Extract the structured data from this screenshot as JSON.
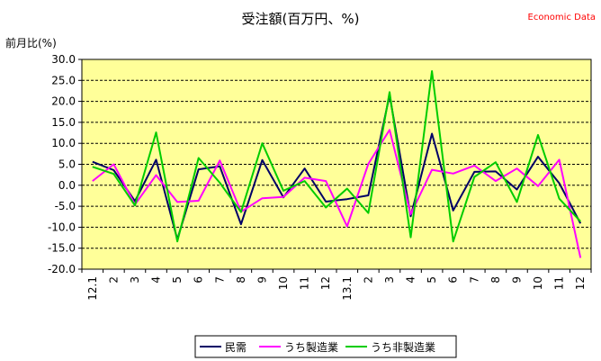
{
  "source_label": "Economic Data",
  "chart_data": {
    "type": "line",
    "title": "受注額(百万円、%)",
    "ylabel": "前月比(%)",
    "xlabel": "",
    "ylim": [
      -20,
      30
    ],
    "yticks": [
      "30.0",
      "25.0",
      "20.0",
      "15.0",
      "10.0",
      "5.0",
      "0.0",
      "-5.0",
      "-10.0",
      "-15.0",
      "-20.0"
    ],
    "ytick_values": [
      30,
      25,
      20,
      15,
      10,
      5,
      0,
      -5,
      -10,
      -15,
      -20
    ],
    "categories": [
      "12.1",
      "2",
      "3",
      "4",
      "5",
      "6",
      "7",
      "8",
      "9",
      "10",
      "11",
      "12",
      "13.1",
      "2",
      "3",
      "4",
      "5",
      "6",
      "7",
      "8",
      "9",
      "10",
      "11",
      "12"
    ],
    "plot_background": "#ffff99",
    "grid": "dashed horizontal",
    "legend_position": "bottom",
    "series": [
      {
        "name": "民需",
        "color": "#000066",
        "values": [
          5.6,
          3.6,
          -3.8,
          6.1,
          -12.9,
          3.8,
          4.5,
          -9.3,
          6.0,
          -2.9,
          4.0,
          -3.9,
          -3.3,
          -2.4,
          21.5,
          -7.4,
          12.3,
          -6.0,
          3.2,
          3.3,
          -1.0,
          6.8,
          0.5,
          -9.1
        ]
      },
      {
        "name": "うち製造業",
        "color": "#ff00ff",
        "values": [
          1.0,
          5.0,
          -4.6,
          2.4,
          -4.0,
          -3.7,
          5.9,
          -6.3,
          -3.1,
          -2.8,
          1.8,
          1.0,
          -9.8,
          5.1,
          13.2,
          -6.9,
          3.7,
          2.8,
          4.7,
          1.0,
          4.0,
          -0.2,
          6.1,
          -17.3
        ]
      },
      {
        "name": "うち非製造業",
        "color": "#00cc00",
        "values": [
          4.4,
          2.7,
          -4.8,
          12.6,
          -13.4,
          6.5,
          0.6,
          -6.4,
          10.0,
          -1.3,
          1.0,
          -5.3,
          -0.8,
          -6.6,
          22.2,
          -12.4,
          27.2,
          -13.4,
          2.0,
          5.5,
          -4.0,
          12.0,
          -3.2,
          -8.6
        ]
      }
    ]
  }
}
